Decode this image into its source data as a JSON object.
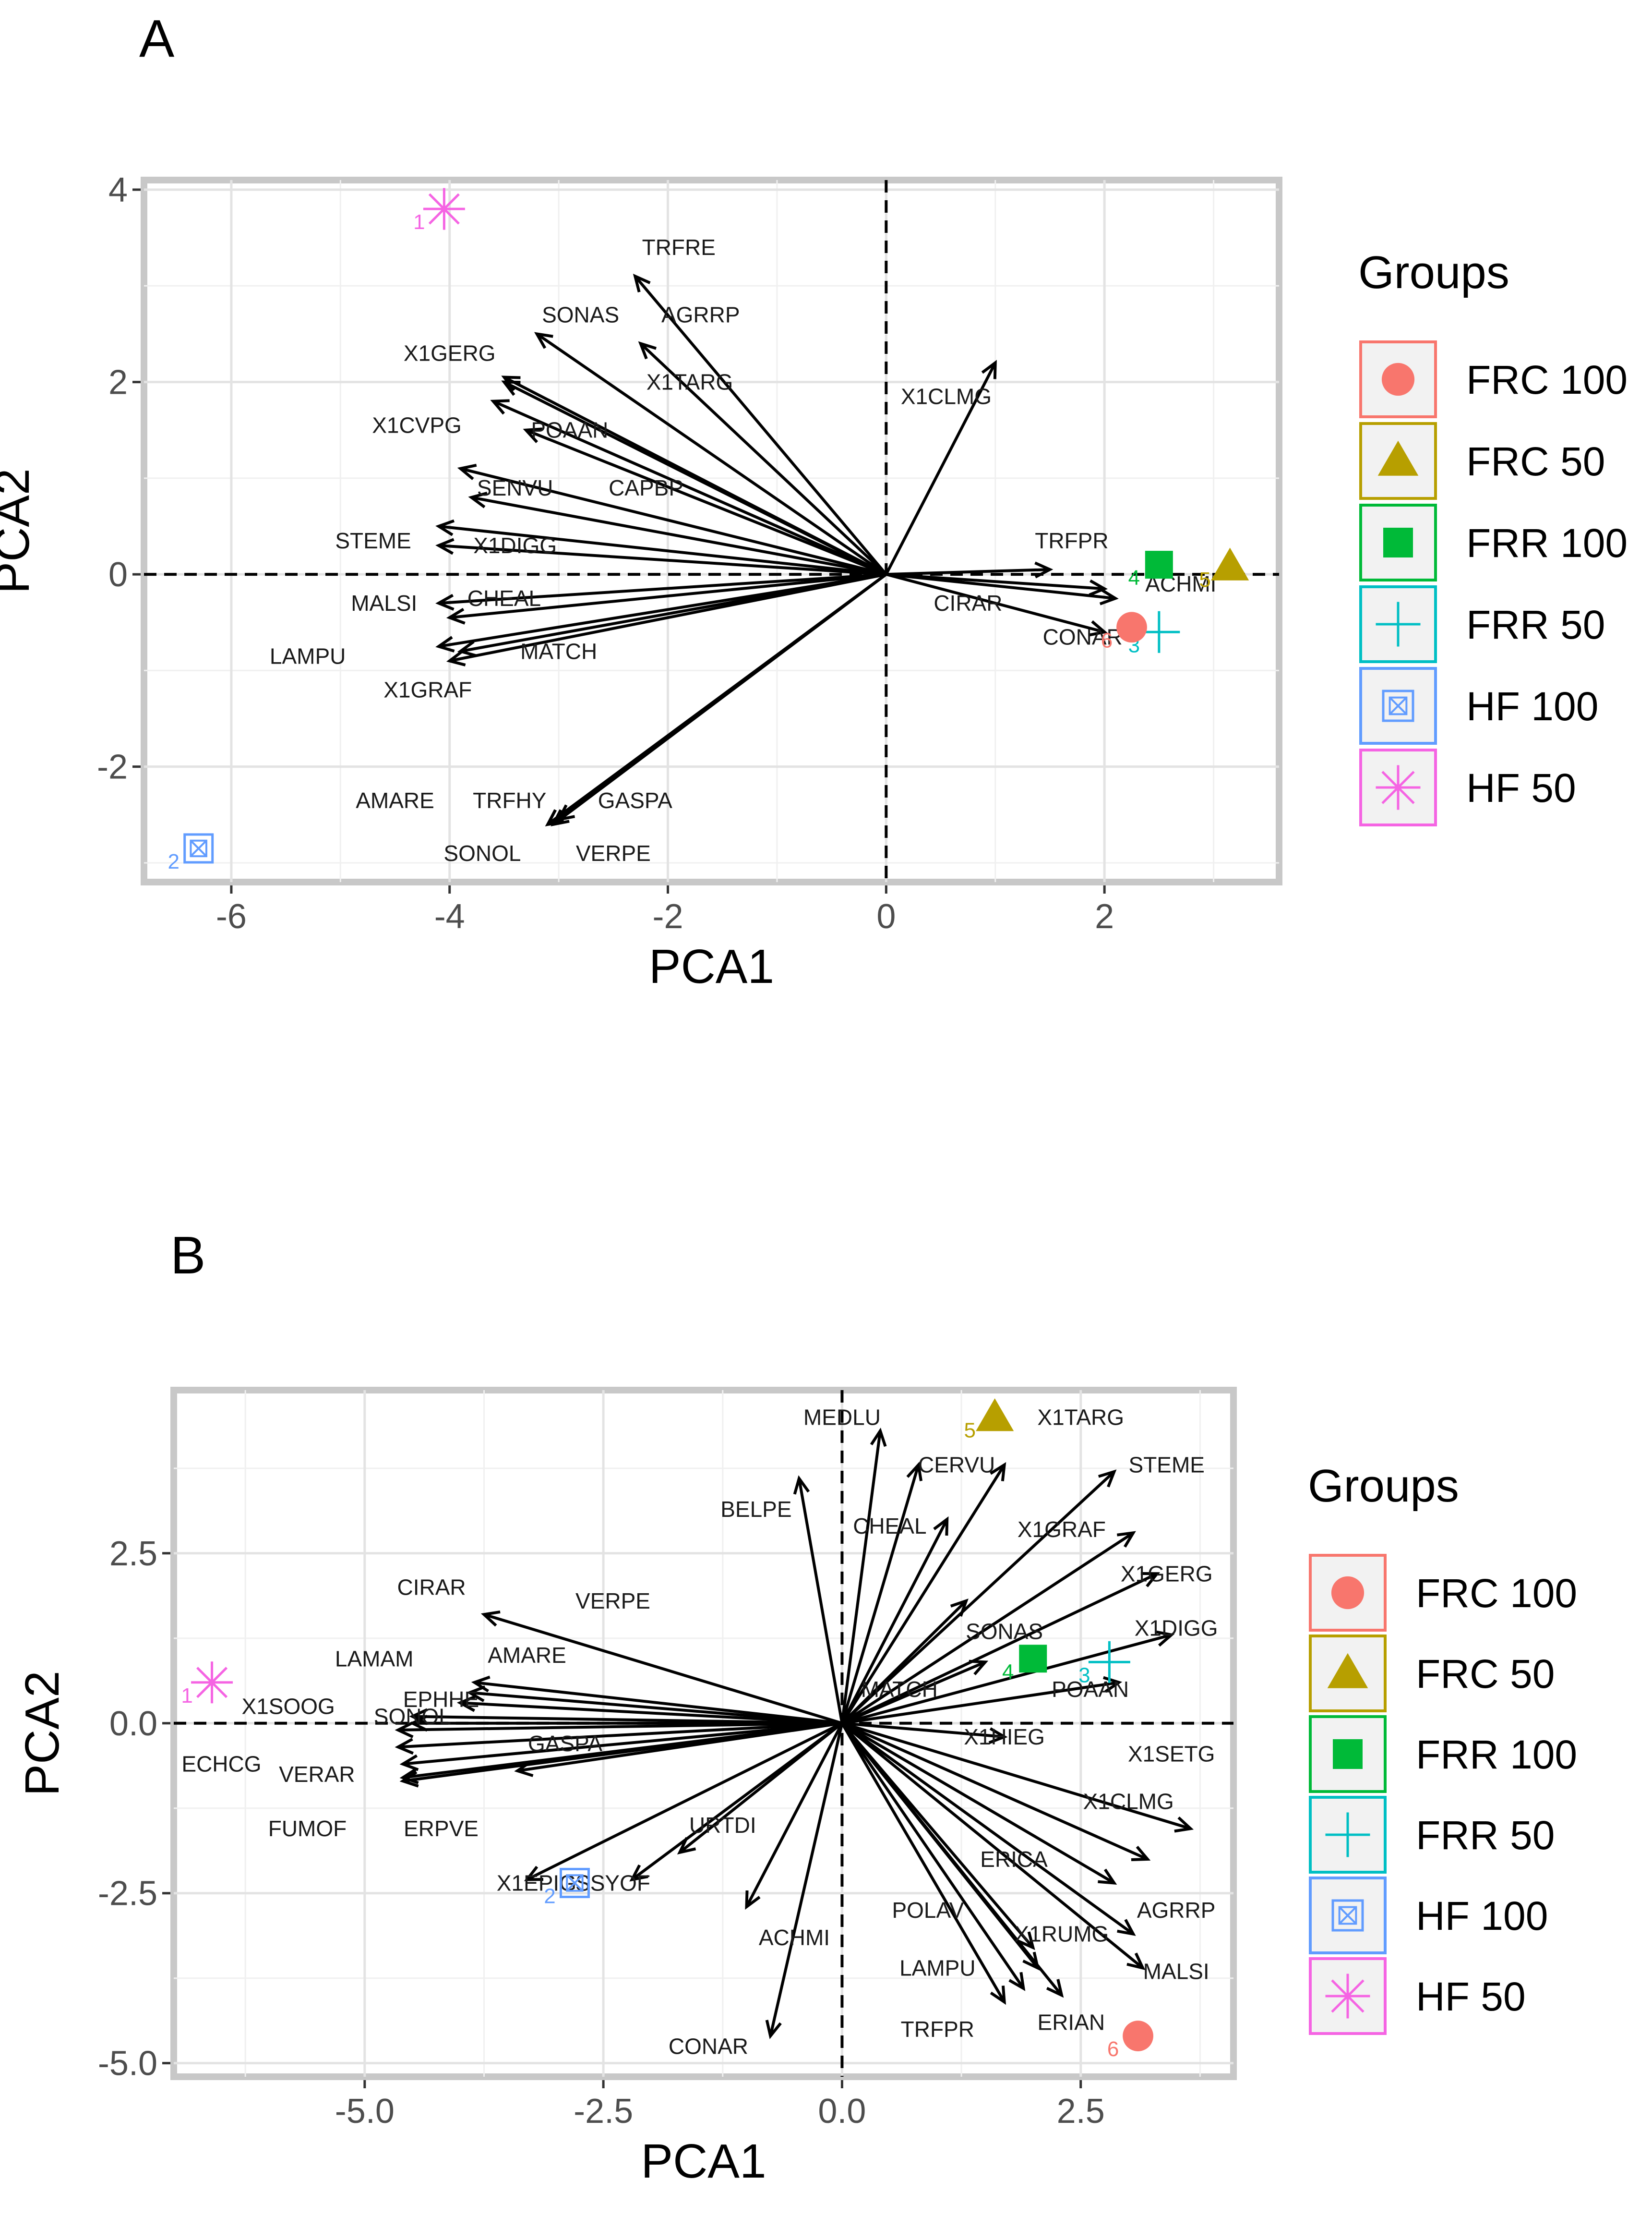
{
  "chart_data": [
    {
      "panel": "A",
      "type": "scatter",
      "subtype": "pca-biplot",
      "xlabel": "PCA1",
      "ylabel": "PCA2",
      "xlim": [
        -6.8,
        3.6
      ],
      "ylim": [
        -3.2,
        4.1
      ],
      "xticks": [
        -6,
        -4,
        -2,
        0,
        2
      ],
      "yticks": [
        -2,
        0,
        2,
        4
      ],
      "grid": true,
      "points": [
        {
          "id": "1",
          "group": "HF 50",
          "x": -4.05,
          "y": 3.8
        },
        {
          "id": "2",
          "group": "HF 100",
          "x": -6.3,
          "y": -2.85
        },
        {
          "id": "3",
          "group": "FRR 50",
          "x": 2.5,
          "y": -0.6
        },
        {
          "id": "4",
          "group": "FRR 100",
          "x": 2.5,
          "y": 0.1
        },
        {
          "id": "5",
          "group": "FRC 50",
          "x": 3.15,
          "y": 0.08
        },
        {
          "id": "6",
          "group": "FRC 100",
          "x": 2.25,
          "y": -0.55
        }
      ],
      "loadings": [
        {
          "name": "TRFRE",
          "x": -2.3,
          "y": 3.1,
          "lx": -1.9,
          "ly": 3.4
        },
        {
          "name": "SONAS",
          "x": -3.2,
          "y": 2.5,
          "lx": -2.8,
          "ly": 2.7
        },
        {
          "name": "AGRRP",
          "x": -2.25,
          "y": 2.4,
          "lx": -1.7,
          "ly": 2.7
        },
        {
          "name": "X1GERG",
          "x": -3.5,
          "y": 2.0,
          "lx": -4.0,
          "ly": 2.3
        },
        {
          "name": "X1TARG",
          "x": -3.5,
          "y": 2.05,
          "lx": -1.8,
          "ly": 2.0
        },
        {
          "name": "X1CVPG",
          "x": -3.6,
          "y": 1.8,
          "lx": -4.3,
          "ly": 1.55
        },
        {
          "name": "POAAN",
          "x": -3.3,
          "y": 1.5,
          "lx": -2.9,
          "ly": 1.5
        },
        {
          "name": "X1CLMG",
          "x": 1.0,
          "y": 2.2,
          "lx": 0.55,
          "ly": 1.85
        },
        {
          "name": "SENVU",
          "x": -3.9,
          "y": 1.1,
          "lx": -3.4,
          "ly": 0.9
        },
        {
          "name": "CAPBP",
          "x": -3.8,
          "y": 0.8,
          "lx": -2.2,
          "ly": 0.9
        },
        {
          "name": "STEME",
          "x": -4.1,
          "y": 0.5,
          "lx": -4.7,
          "ly": 0.35
        },
        {
          "name": "X1DIGG",
          "x": -4.1,
          "y": 0.3,
          "lx": -3.4,
          "ly": 0.3
        },
        {
          "name": "TRFPR",
          "x": 1.5,
          "y": 0.05,
          "lx": 1.7,
          "ly": 0.35
        },
        {
          "name": "ACHMI",
          "x": 2.0,
          "y": -0.15,
          "lx": 2.7,
          "ly": -0.1
        },
        {
          "name": "CIRAR",
          "x": 2.1,
          "y": -0.25,
          "lx": 0.75,
          "ly": -0.3
        },
        {
          "name": "CONAR",
          "x": 2.0,
          "y": -0.6,
          "lx": 1.8,
          "ly": -0.65
        },
        {
          "name": "MALSI",
          "x": -4.1,
          "y": -0.3,
          "lx": -4.6,
          "ly": -0.3
        },
        {
          "name": "CHEAL",
          "x": -4.0,
          "y": -0.45,
          "lx": -3.5,
          "ly": -0.25
        },
        {
          "name": "LAMPU",
          "x": -4.1,
          "y": -0.75,
          "lx": -5.3,
          "ly": -0.85
        },
        {
          "name": "MATCH",
          "x": -3.9,
          "y": -0.8,
          "lx": -3.0,
          "ly": -0.8
        },
        {
          "name": "X1GRAF",
          "x": -4.0,
          "y": -0.9,
          "lx": -4.2,
          "ly": -1.2
        },
        {
          "name": "AMARE",
          "x": -3.0,
          "y": -2.55,
          "lx": -4.5,
          "ly": -2.35
        },
        {
          "name": "TRFHY",
          "x": -3.05,
          "y": -2.6,
          "lx": -3.45,
          "ly": -2.35
        },
        {
          "name": "GASPA",
          "x": -3.1,
          "y": -2.6,
          "lx": -2.3,
          "ly": -2.35
        },
        {
          "name": "SONOL",
          "x": -3.1,
          "y": -2.6,
          "lx": -3.7,
          "ly": -2.9
        },
        {
          "name": "VERPE",
          "x": -3.1,
          "y": -2.6,
          "lx": -2.5,
          "ly": -2.9
        }
      ]
    },
    {
      "panel": "B",
      "type": "scatter",
      "subtype": "pca-biplot",
      "xlabel": "PCA1",
      "ylabel": "PCA2",
      "xlim": [
        -7.0,
        4.1
      ],
      "ylim": [
        -5.2,
        4.9
      ],
      "xticks": [
        "-5.0",
        "-2.5",
        "0.0",
        "2.5"
      ],
      "yticks": [
        "-5.0",
        "-2.5",
        "0.0",
        "2.5"
      ],
      "grid": true,
      "points": [
        {
          "id": "1",
          "group": "HF 50",
          "x": -6.6,
          "y": 0.6
        },
        {
          "id": "2",
          "group": "HF 100",
          "x": -2.8,
          "y": -2.35
        },
        {
          "id": "3",
          "group": "FRR 50",
          "x": 2.8,
          "y": 0.9
        },
        {
          "id": "4",
          "group": "FRR 100",
          "x": 2.0,
          "y": 0.95
        },
        {
          "id": "5",
          "group": "FRC 50",
          "x": 1.6,
          "y": 4.5
        },
        {
          "id": "6",
          "group": "FRC 100",
          "x": 3.1,
          "y": -4.6
        }
      ],
      "loadings": [
        {
          "name": "MEDLU",
          "x": 0.4,
          "y": 4.3,
          "lx": 0.0,
          "ly": 4.5
        },
        {
          "name": "X1TARG",
          "x": 1.7,
          "y": 3.8,
          "lx": 2.5,
          "ly": 4.5
        },
        {
          "name": "CERVU",
          "x": 0.8,
          "y": 3.8,
          "lx": 1.2,
          "ly": 3.8
        },
        {
          "name": "BELPE",
          "x": -0.45,
          "y": 3.6,
          "lx": -0.9,
          "ly": 3.15
        },
        {
          "name": "STEME",
          "x": 2.85,
          "y": 3.7,
          "lx": 3.4,
          "ly": 3.8
        },
        {
          "name": "CHEAL",
          "x": 1.1,
          "y": 3.0,
          "lx": 0.5,
          "ly": 2.9
        },
        {
          "name": "X1GRAF",
          "x": 3.05,
          "y": 2.8,
          "lx": 2.3,
          "ly": 2.85
        },
        {
          "name": "X1GERG",
          "x": 3.3,
          "y": 2.2,
          "lx": 3.4,
          "ly": 2.2
        },
        {
          "name": "X1DIGG",
          "x": 3.45,
          "y": 1.3,
          "lx": 3.5,
          "ly": 1.4
        },
        {
          "name": "SONAS",
          "x": 1.3,
          "y": 1.8,
          "lx": 1.7,
          "ly": 1.35
        },
        {
          "name": "POAAN",
          "x": 2.9,
          "y": 0.6,
          "lx": 2.6,
          "ly": 0.5
        },
        {
          "name": "MATCH",
          "x": 1.5,
          "y": 0.9,
          "lx": 0.6,
          "ly": 0.5
        },
        {
          "name": "X1HIEG",
          "x": 1.7,
          "y": -0.2,
          "lx": 1.7,
          "ly": -0.2
        },
        {
          "name": "X1SETG",
          "x": 3.65,
          "y": -1.55,
          "lx": 3.45,
          "ly": -0.45
        },
        {
          "name": "X1CLMG",
          "x": 3.2,
          "y": -2.0,
          "lx": 3.0,
          "ly": -1.15
        },
        {
          "name": "ERICA",
          "x": 2.85,
          "y": -2.35,
          "lx": 1.8,
          "ly": -2.0
        },
        {
          "name": "AGRRP",
          "x": 3.05,
          "y": -3.1,
          "lx": 3.5,
          "ly": -2.75
        },
        {
          "name": "POLAV",
          "x": 2.0,
          "y": -3.3,
          "lx": 0.9,
          "ly": -2.75
        },
        {
          "name": "X1RUMG",
          "x": 2.05,
          "y": -3.6,
          "lx": 2.3,
          "ly": -3.1
        },
        {
          "name": "LAMPU",
          "x": 1.9,
          "y": -3.9,
          "lx": 1.0,
          "ly": -3.6
        },
        {
          "name": "MALSI",
          "x": 3.15,
          "y": -3.6,
          "lx": 3.5,
          "ly": -3.65
        },
        {
          "name": "ERIAN",
          "x": 2.3,
          "y": -4.0,
          "lx": 2.4,
          "ly": -4.4
        },
        {
          "name": "TRFPR",
          "x": 1.7,
          "y": -4.1,
          "lx": 1.0,
          "ly": -4.5
        },
        {
          "name": "CONAR",
          "x": -0.75,
          "y": -4.6,
          "lx": -1.4,
          "ly": -4.75
        },
        {
          "name": "ACHMI",
          "x": -1.0,
          "y": -2.7,
          "lx": -0.5,
          "ly": -3.15
        },
        {
          "name": "URTDI",
          "x": -1.7,
          "y": -1.9,
          "lx": -1.25,
          "ly": -1.5
        },
        {
          "name": "SSYOF",
          "x": -2.2,
          "y": -2.3,
          "lx": -2.4,
          "ly": -2.35
        },
        {
          "name": "CIRAR",
          "x": -3.75,
          "y": 1.6,
          "lx": -4.3,
          "ly": 2.0
        },
        {
          "name": "VERPE",
          "x": -3.85,
          "y": 0.6,
          "lx": -2.4,
          "ly": 1.8
        },
        {
          "name": "AMARE",
          "x": -3.9,
          "y": 0.45,
          "lx": -3.3,
          "ly": 1.0
        },
        {
          "name": "EPHHE",
          "x": -4.0,
          "y": 0.3,
          "lx": -4.2,
          "ly": 0.35
        },
        {
          "name": "LAMAM",
          "x": -4.65,
          "y": -0.1,
          "lx": -4.9,
          "ly": 0.95
        },
        {
          "name": "X1SOOG",
          "x": -4.5,
          "y": 0.1,
          "lx": -5.8,
          "ly": 0.25
        },
        {
          "name": "SONOL",
          "x": -4.5,
          "y": 0.0,
          "lx": -4.5,
          "ly": 0.1
        },
        {
          "name": "ECHCG",
          "x": -4.65,
          "y": -0.35,
          "lx": -6.5,
          "ly": -0.6
        },
        {
          "name": "VERAR",
          "x": -4.6,
          "y": -0.6,
          "lx": -5.5,
          "ly": -0.75
        },
        {
          "name": "GASPA",
          "x": -3.4,
          "y": -0.7,
          "lx": -2.9,
          "ly": -0.3
        },
        {
          "name": "FUMOF",
          "x": -4.6,
          "y": -0.8,
          "lx": -5.6,
          "ly": -1.55
        },
        {
          "name": "ERPVE",
          "x": -4.6,
          "y": -0.85,
          "lx": -4.2,
          "ly": -1.55
        },
        {
          "name": "X1EPIG",
          "x": -3.3,
          "y": -2.3,
          "lx": -3.2,
          "ly": -2.35
        }
      ]
    }
  ],
  "panels": {
    "a": {
      "label": "A"
    },
    "b": {
      "label": "B"
    }
  },
  "legend": {
    "title": "Groups",
    "items": [
      {
        "label": "FRC 100",
        "color": "#F8766D",
        "shape": "circle"
      },
      {
        "label": "FRC 50",
        "color": "#B79F00",
        "shape": "triangle"
      },
      {
        "label": "FRR 100",
        "color": "#00BA38",
        "shape": "square"
      },
      {
        "label": "FRR 50",
        "color": "#00BFC4",
        "shape": "plus"
      },
      {
        "label": "HF 100",
        "color": "#619CFF",
        "shape": "boxx"
      },
      {
        "label": "HF 50",
        "color": "#F564E3",
        "shape": "asterisk"
      }
    ]
  }
}
